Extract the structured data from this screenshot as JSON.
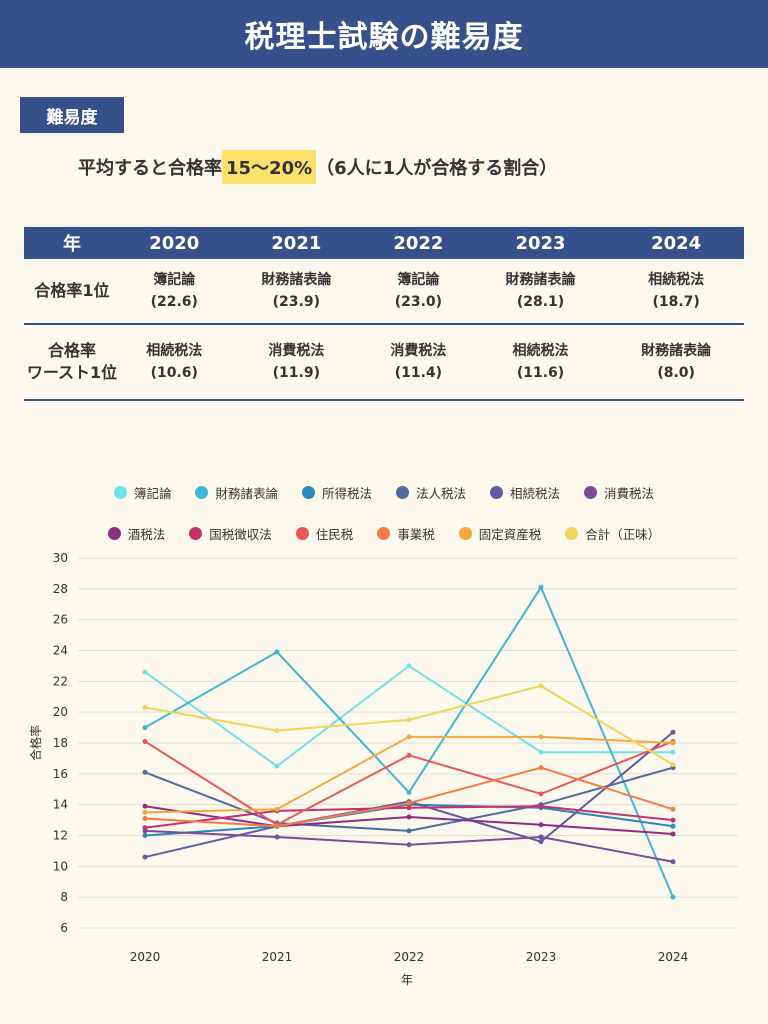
{
  "header": {
    "title": "税理士試験の難易度"
  },
  "section_tag": "難易度",
  "summary": {
    "prefix": "平均すると合格率",
    "highlight": "15〜20%",
    "suffix": "（6人に1人が合格する割合）"
  },
  "table": {
    "header": [
      "年",
      "2020",
      "2021",
      "2022",
      "2023",
      "2024"
    ],
    "rows": [
      {
        "head": [
          "合格率1位"
        ],
        "cells": [
          [
            "簿記論",
            "(22.6)"
          ],
          [
            "財務諸表論",
            "(23.9)"
          ],
          [
            "簿記論",
            "(23.0)"
          ],
          [
            "財務諸表論",
            "(28.1)"
          ],
          [
            "相続税法",
            "(18.7)"
          ]
        ]
      },
      {
        "head": [
          "合格率",
          "ワースト1位"
        ],
        "cells": [
          [
            "相続税法",
            "(10.6)"
          ],
          [
            "消費税法",
            "(11.9)"
          ],
          [
            "消費税法",
            "(11.4)"
          ],
          [
            "相続税法",
            "(11.6)"
          ],
          [
            "財務諸表論",
            "(8.0)"
          ]
        ]
      }
    ]
  },
  "chart_data": {
    "type": "line",
    "x": [
      "2020",
      "2021",
      "2022",
      "2023",
      "2024"
    ],
    "xlabel": "年",
    "ylabel": "合格率",
    "ylim": [
      6,
      30
    ],
    "yticks": [
      6,
      8,
      10,
      12,
      14,
      16,
      18,
      20,
      22,
      24,
      26,
      28,
      30
    ],
    "grid": true,
    "legend_position": "top",
    "series": [
      {
        "name": "簿記論",
        "color": "#6ee0e8",
        "values": [
          22.6,
          16.5,
          23.0,
          17.4,
          17.4
        ]
      },
      {
        "name": "財務諸表論",
        "color": "#3fb5d9",
        "values": [
          19.0,
          23.9,
          14.8,
          28.1,
          8.0
        ]
      },
      {
        "name": "所得税法",
        "color": "#2a87c0",
        "values": [
          12.0,
          12.6,
          14.0,
          13.8,
          12.6
        ]
      },
      {
        "name": "法人税法",
        "color": "#4f6aa0",
        "values": [
          16.1,
          12.8,
          12.3,
          14.0,
          16.4
        ]
      },
      {
        "name": "相続税法",
        "color": "#5f5aa2",
        "values": [
          10.6,
          12.6,
          14.2,
          11.6,
          18.7
        ]
      },
      {
        "name": "消費税法",
        "color": "#7b4a99",
        "values": [
          12.3,
          11.9,
          11.4,
          11.9,
          10.3
        ]
      },
      {
        "name": "酒税法",
        "color": "#8e2d7d",
        "values": [
          13.9,
          12.6,
          13.2,
          12.7,
          12.1
        ]
      },
      {
        "name": "国税徴収法",
        "color": "#c5306a",
        "values": [
          12.5,
          13.6,
          13.8,
          13.9,
          13.0
        ]
      },
      {
        "name": "住民税",
        "color": "#e85656",
        "values": [
          18.1,
          12.7,
          17.2,
          14.7,
          18.1
        ]
      },
      {
        "name": "事業税",
        "color": "#f57a45",
        "values": [
          13.1,
          12.6,
          14.1,
          16.4,
          13.7
        ]
      },
      {
        "name": "固定資産税",
        "color": "#f5a83a",
        "values": [
          13.5,
          13.7,
          18.4,
          18.4,
          18.0
        ]
      },
      {
        "name": "合計（正味）",
        "color": "#efd45a",
        "values": [
          20.3,
          18.8,
          19.5,
          21.7,
          16.6
        ]
      }
    ]
  }
}
